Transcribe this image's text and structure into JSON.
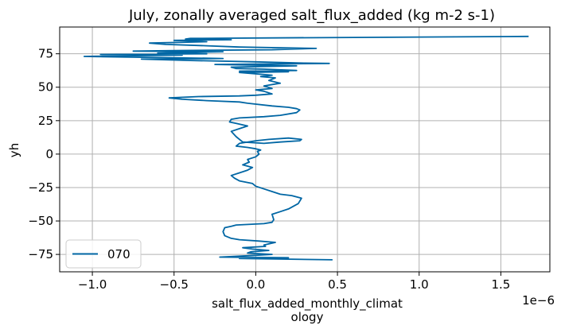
{
  "chart_data": {
    "type": "line",
    "title": "July, zonally averaged salt_flux_added (kg m-2 s-1)",
    "xlabel": "salt_flux_added_monthly_climat",
    "xlabel_line2": "ology",
    "ylabel": "yh",
    "x_scale_label": "1e−6",
    "xlim": [
      -1.2e-06,
      1.8e-06
    ],
    "ylim": [
      -88,
      95
    ],
    "x_ticks": [
      -1e-06,
      -5e-07,
      0,
      5e-07,
      1e-06,
      1.5e-06
    ],
    "x_tick_labels": [
      "−1.0",
      "−0.5",
      "0.0",
      "0.5",
      "1.0",
      "1.5"
    ],
    "y_ticks": [
      -75,
      -50,
      -25,
      0,
      25,
      50,
      75
    ],
    "y_tick_labels": [
      "−75",
      "−50",
      "−25",
      "0",
      "25",
      "50",
      "75"
    ],
    "grid": true,
    "legend_position": "lower-left",
    "series": [
      {
        "name": "070",
        "color": "#0066a4",
        "points": [
          [
            4.7e-07,
            -79
          ],
          [
            -1e-07,
            -78
          ],
          [
            2e-07,
            -77.5
          ],
          [
            -2.2e-07,
            -77
          ],
          [
            -5e-08,
            -76
          ],
          [
            1e-07,
            -75
          ],
          [
            -5e-08,
            -74
          ],
          [
            -3e-08,
            -73
          ],
          [
            8e-08,
            -72
          ],
          [
            -2e-08,
            -71
          ],
          [
            -8e-08,
            -70
          ],
          [
            6e-08,
            -69
          ],
          [
            5e-08,
            -68
          ],
          [
            1.2e-07,
            -66
          ],
          [
            2e-08,
            -65
          ],
          [
            -1e-07,
            -64
          ],
          [
            -1.5e-07,
            -63
          ],
          [
            -1.9e-07,
            -61
          ],
          [
            -2e-07,
            -58
          ],
          [
            -1.9e-07,
            -55
          ],
          [
            -1.5e-07,
            -54
          ],
          [
            -1.2e-07,
            -53
          ],
          [
            5e-08,
            -52
          ],
          [
            1e-07,
            -51
          ],
          [
            1.1e-07,
            -49
          ],
          [
            1e-07,
            -45
          ],
          [
            1.5e-07,
            -43
          ],
          [
            2e-07,
            -41
          ],
          [
            2.6e-07,
            -37
          ],
          [
            2.8e-07,
            -33
          ],
          [
            2.2e-07,
            -31
          ],
          [
            1.5e-07,
            -30
          ],
          [
            1e-07,
            -28
          ],
          [
            5e-08,
            -26
          ],
          [
            0.0,
            -24
          ],
          [
            -2e-08,
            -22
          ],
          [
            -1e-07,
            -20
          ],
          [
            -1.3e-07,
            -18
          ],
          [
            -1.5e-07,
            -16
          ],
          [
            -1e-07,
            -14
          ],
          [
            -5e-08,
            -12
          ],
          [
            -2e-08,
            -10
          ],
          [
            -8e-08,
            -8
          ],
          [
            -4e-08,
            -6
          ],
          [
            -5e-08,
            -4
          ],
          [
            0.0,
            -2
          ],
          [
            2e-08,
            0
          ],
          [
            1e-08,
            2
          ],
          [
            3e-08,
            3
          ],
          [
            0.0,
            4
          ],
          [
            -5e-08,
            5
          ],
          [
            -1.2e-07,
            6
          ],
          [
            -1e-07,
            8
          ],
          [
            0.0,
            10
          ],
          [
            8e-08,
            11
          ],
          [
            2e-07,
            12
          ],
          [
            2.8e-07,
            11
          ],
          [
            2.7e-07,
            10
          ],
          [
            1.5e-07,
            9
          ],
          [
            5e-08,
            8
          ],
          [
            -8e-08,
            9
          ],
          [
            -1.2e-07,
            13
          ],
          [
            -1.5e-07,
            17
          ],
          [
            -1e-07,
            19
          ],
          [
            -5e-08,
            21
          ],
          [
            -1.2e-07,
            23
          ],
          [
            -1.6e-07,
            24
          ],
          [
            -1.5e-07,
            26
          ],
          [
            -1e-07,
            27
          ],
          [
            5e-08,
            28
          ],
          [
            1.5e-07,
            29
          ],
          [
            2.5e-07,
            31
          ],
          [
            2.7e-07,
            33
          ],
          [
            2.5e-07,
            34
          ],
          [
            2e-07,
            35
          ],
          [
            1e-07,
            36
          ],
          [
            -5e-08,
            38
          ],
          [
            -1e-07,
            39
          ],
          [
            -3e-07,
            40
          ],
          [
            -4.5e-07,
            41
          ],
          [
            -5.3e-07,
            42
          ],
          [
            -3.5e-07,
            43
          ],
          [
            -1e-07,
            43.5
          ],
          [
            0.0,
            44
          ],
          [
            1e-07,
            45
          ],
          [
            5e-08,
            47
          ],
          [
            0.0,
            48
          ],
          [
            1e-07,
            49
          ],
          [
            5e-08,
            51
          ],
          [
            1.5e-07,
            53
          ],
          [
            8e-08,
            55
          ],
          [
            1.2e-07,
            57
          ],
          [
            3e-08,
            58
          ],
          [
            1e-07,
            59
          ],
          [
            -1e-07,
            61
          ],
          [
            2e-07,
            61.5
          ],
          [
            -1e-07,
            62
          ],
          [
            2.5e-07,
            62.5
          ],
          [
            5e-08,
            63.5
          ],
          [
            -1.2e-07,
            64
          ],
          [
            -1.5e-07,
            65
          ],
          [
            2.5e-07,
            66
          ],
          [
            -2.5e-07,
            67
          ],
          [
            1.5e-07,
            67.5
          ],
          [
            4.5e-07,
            67.8
          ],
          [
            3e-07,
            68
          ],
          [
            0.0,
            69
          ],
          [
            -4e-07,
            70
          ],
          [
            -7e-07,
            71
          ],
          [
            -2e-07,
            71.5
          ],
          [
            -1.05e-06,
            73
          ],
          [
            -8e-07,
            73.5
          ],
          [
            -4.5e-07,
            74
          ],
          [
            -9.5e-07,
            74.5
          ],
          [
            -3e-07,
            75
          ],
          [
            -6e-07,
            75.5
          ],
          [
            -4.5e-07,
            76
          ],
          [
            -2e-07,
            76.5
          ],
          [
            -7.5e-07,
            77
          ],
          [
            -4.5e-07,
            77.5
          ],
          [
            1e-07,
            78
          ],
          [
            3.7e-07,
            79
          ],
          [
            -1e-07,
            80
          ],
          [
            -3e-07,
            81
          ],
          [
            -5.5e-07,
            82
          ],
          [
            -6.5e-07,
            83
          ],
          [
            -3e-07,
            84
          ],
          [
            -5e-07,
            85
          ],
          [
            -1.5e-07,
            85.5
          ],
          [
            -4.3e-07,
            86
          ],
          [
            -4e-07,
            86.5
          ],
          [
            1.67e-06,
            88
          ]
        ]
      }
    ]
  }
}
